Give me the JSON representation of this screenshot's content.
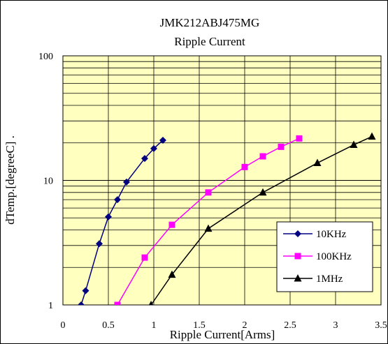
{
  "chart_data": {
    "type": "line",
    "title": "JMK212ABJ475MG",
    "subtitle": "Ripple Current",
    "xlabel": "Ripple Current[Arms]",
    "ylabel": "dTemp.[degreeC] .",
    "xlim": [
      0,
      3.5
    ],
    "ylim": [
      1,
      100
    ],
    "y_scale": "log",
    "x_ticks": [
      "0",
      "0.5",
      "1",
      "1.5",
      "2",
      "2.5",
      "3",
      "3.5"
    ],
    "y_ticks": [
      "1",
      "10",
      "100"
    ],
    "grid": true,
    "plot_background": "#FFFFC0",
    "legend_position": "bottom-right",
    "series": [
      {
        "name": "10KHz",
        "color": "#000080",
        "marker": "diamond",
        "x": [
          0.2,
          0.25,
          0.4,
          0.5,
          0.6,
          0.7,
          0.9,
          1.0,
          1.1
        ],
        "y": [
          1.0,
          1.3,
          3.1,
          5.1,
          7.0,
          9.7,
          15.0,
          18.0,
          21.0
        ]
      },
      {
        "name": "100KHz",
        "color": "#FF00FF",
        "marker": "square",
        "x": [
          0.6,
          0.9,
          1.2,
          1.6,
          2.0,
          2.2,
          2.4,
          2.6
        ],
        "y": [
          1.0,
          2.4,
          4.4,
          8.0,
          12.8,
          15.6,
          18.6,
          21.7
        ]
      },
      {
        "name": "1MHz",
        "color": "#000000",
        "marker": "triangle",
        "x": [
          0.97,
          1.2,
          1.6,
          2.2,
          2.8,
          3.2,
          3.4
        ],
        "y": [
          1.0,
          1.75,
          4.1,
          8.0,
          13.8,
          19.3,
          22.5
        ]
      }
    ]
  }
}
